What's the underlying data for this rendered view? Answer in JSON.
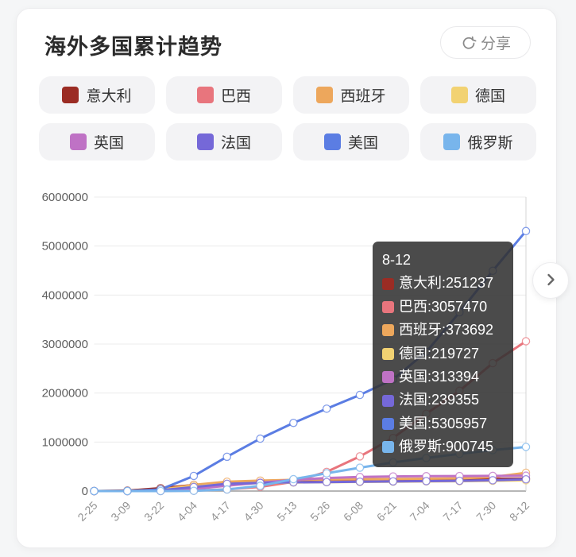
{
  "header": {
    "title": "海外多国累计趋势",
    "share_label": "分享",
    "share_icon": "circular-arrow-share-icon"
  },
  "legend": {
    "items": [
      {
        "label": "意大利",
        "color": "#9B2C24"
      },
      {
        "label": "巴西",
        "color": "#E8757D"
      },
      {
        "label": "西班牙",
        "color": "#EDA75C"
      },
      {
        "label": "德国",
        "color": "#F2D272"
      },
      {
        "label": "英国",
        "color": "#BF72C5"
      },
      {
        "label": "法国",
        "color": "#7568D8"
      },
      {
        "label": "美国",
        "color": "#5B7DE3"
      },
      {
        "label": "俄罗斯",
        "color": "#78B5EC"
      }
    ]
  },
  "chart_data": {
    "type": "line",
    "title": "海外多国累计趋势",
    "xlabel": "",
    "ylabel": "",
    "ylim": [
      0,
      6000000
    ],
    "yticks": [
      0,
      1000000,
      2000000,
      3000000,
      4000000,
      5000000,
      6000000
    ],
    "grid": true,
    "legend_position": "top",
    "x": [
      "2-25",
      "3-09",
      "3-22",
      "4-04",
      "4-17",
      "4-30",
      "5-13",
      "5-26",
      "6-08",
      "6-21",
      "7-04",
      "7-17",
      "7-30",
      "8-12"
    ],
    "series": [
      {
        "name": "意大利",
        "color": "#9B2C24",
        "values": [
          323,
          9172,
          59138,
          124632,
          172434,
          205463,
          222104,
          230555,
          235278,
          238499,
          241419,
          243967,
          246776,
          251237
        ]
      },
      {
        "name": "巴西",
        "color": "#E8757D",
        "values": [
          0,
          25,
          1546,
          10278,
          33682,
          85380,
          188974,
          391222,
          707412,
          1083341,
          1577004,
          2046328,
          2610102,
          3057470
        ]
      },
      {
        "name": "西班牙",
        "color": "#EDA75C",
        "values": [
          6,
          1204,
          28768,
          126168,
          190839,
          213435,
          228691,
          236259,
          241717,
          246272,
          250545,
          260255,
          285430,
          373692
        ]
      },
      {
        "name": "德国",
        "color": "#F2D272",
        "values": [
          17,
          1176,
          24873,
          96092,
          141397,
          163009,
          174098,
          181200,
          186109,
          191272,
          197341,
          201574,
          207828,
          219727
        ]
      },
      {
        "name": "英国",
        "color": "#BF72C5",
        "values": [
          13,
          321,
          5683,
          41903,
          108692,
          171253,
          229705,
          265227,
          287399,
          297914,
          303181,
          306862,
          309763,
          313394
        ]
      },
      {
        "name": "法国",
        "color": "#7568D8",
        "values": [
          13,
          1209,
          16018,
          82165,
          147969,
          167178,
          178060,
          182722,
          191313,
          197008,
          202980,
          208640,
          220352,
          239355
        ]
      },
      {
        "name": "美国",
        "color": "#5B7DE3",
        "values": [
          53,
          605,
          33276,
          308850,
          699706,
          1069826,
          1390764,
          1680913,
          1961185,
          2279879,
          2839917,
          3647715,
          4495015,
          5305957
        ]
      },
      {
        "name": "俄罗斯",
        "color": "#78B5EC",
        "values": [
          3,
          17,
          367,
          4731,
          32008,
          106498,
          242271,
          362342,
          476658,
          583879,
          674515,
          759203,
          834499,
          900745
        ]
      }
    ]
  },
  "tooltip": {
    "header": "8-12",
    "rows": [
      {
        "label": "意大利",
        "value": "251237",
        "color": "#9B2C24"
      },
      {
        "label": "巴西",
        "value": "3057470",
        "color": "#E8757D"
      },
      {
        "label": "西班牙",
        "value": "373692",
        "color": "#EDA75C"
      },
      {
        "label": "德国",
        "value": "219727",
        "color": "#F2D272"
      },
      {
        "label": "英国",
        "value": "313394",
        "color": "#BF72C5"
      },
      {
        "label": "法国",
        "value": "239355",
        "color": "#7568D8"
      },
      {
        "label": "美国",
        "value": "5305957",
        "color": "#5B7DE3"
      },
      {
        "label": "俄罗斯",
        "value": "900745",
        "color": "#78B5EC"
      }
    ]
  },
  "nav": {
    "next_icon": "chevron-right-icon"
  }
}
